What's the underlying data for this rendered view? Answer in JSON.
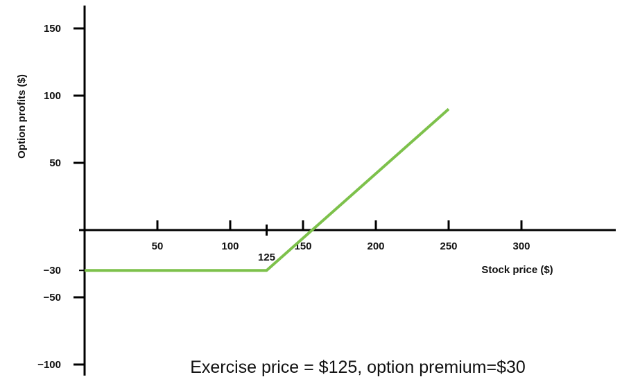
{
  "chart_data": {
    "type": "line",
    "xlabel": "Stock price ($)",
    "ylabel": "Option profits ($)",
    "caption": "Exercise price = $125, option premium=$30",
    "x_ticks": [
      50,
      100,
      125,
      150,
      200,
      250,
      300
    ],
    "y_ticks": [
      150,
      100,
      50,
      -30,
      -50,
      -100
    ],
    "xlim": [
      0,
      360
    ],
    "ylim": [
      -100,
      160
    ],
    "grid": false,
    "series": [
      {
        "color": "#7dc14b",
        "points": [
          {
            "x": 0,
            "y": -30
          },
          {
            "x": 125,
            "y": -30
          },
          {
            "x": 250,
            "y": 90
          }
        ]
      }
    ]
  }
}
